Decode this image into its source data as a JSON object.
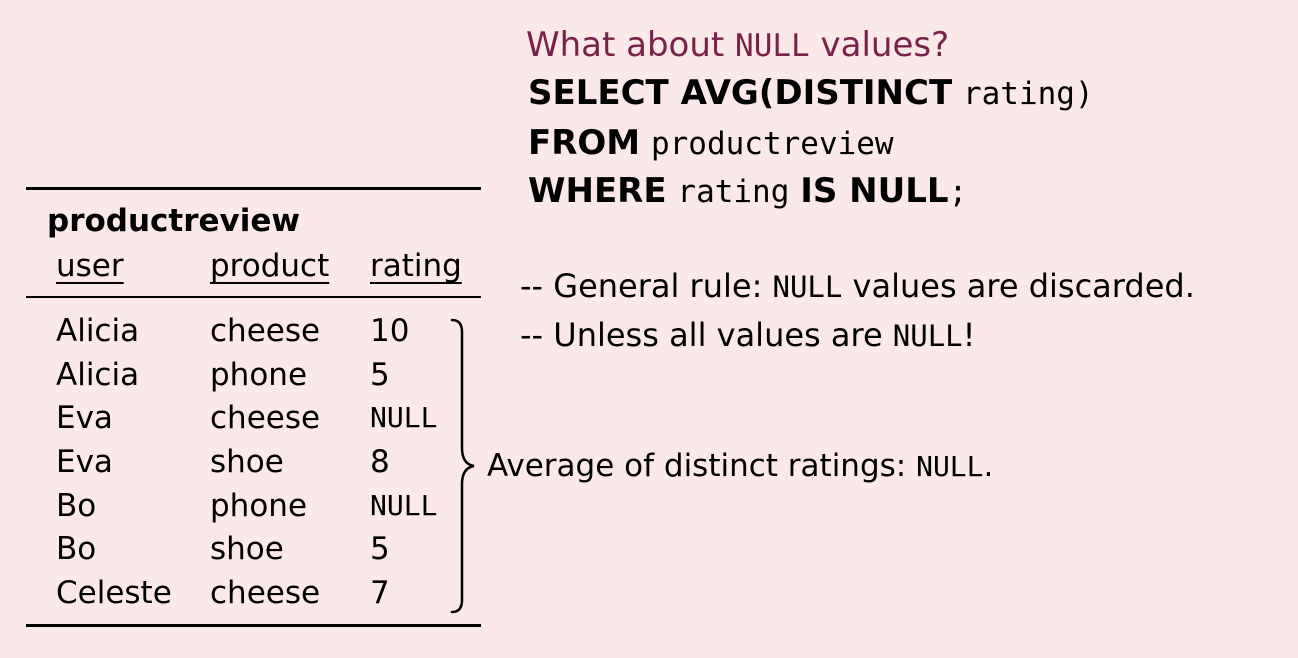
{
  "question": {
    "before": "What about ",
    "null": "NULL",
    "after": " values?"
  },
  "sql": {
    "select_kw": "SELECT AVG(DISTINCT",
    "select_col": "rating)",
    "from_kw": "FROM",
    "from_table": "productreview",
    "where_kw": "WHERE",
    "where_col": "rating",
    "is_null_kw": "IS NULL",
    "terminator": ";"
  },
  "comments": [
    {
      "prefix": "-- General rule: ",
      "null": "NULL",
      "suffix": " values are discarded."
    },
    {
      "prefix": "-- Unless all values are ",
      "null": "NULL",
      "suffix": "!"
    }
  ],
  "table": {
    "name": "productreview",
    "columns": [
      "user",
      "product",
      "rating"
    ],
    "rows": [
      [
        "Alicia",
        "cheese",
        "10"
      ],
      [
        "Alicia",
        "phone",
        "5"
      ],
      [
        "Eva",
        "cheese",
        "NULL"
      ],
      [
        "Eva",
        "shoe",
        "8"
      ],
      [
        "Bo",
        "phone",
        "NULL"
      ],
      [
        "Bo",
        "shoe",
        "5"
      ],
      [
        "Celeste",
        "cheese",
        "7"
      ]
    ]
  },
  "result": {
    "label": "Average of distinct ratings: ",
    "value": "NULL",
    "end": "."
  },
  "colors": {
    "background": "#fbe9ea",
    "accent": "#7a2149"
  }
}
